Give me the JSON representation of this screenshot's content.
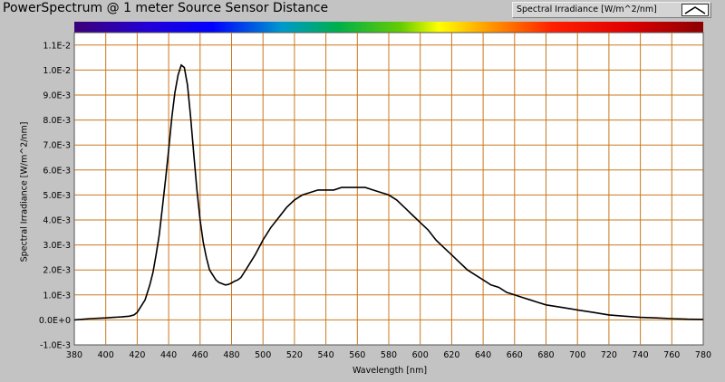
{
  "window": {
    "title": "PowerSpectrum @ 1 meter Source Sensor Distance"
  },
  "legend": {
    "label": "Spectral Irradiance [W/m^2/nm]"
  },
  "chart_data": {
    "type": "line",
    "title": "PowerSpectrum @ 1 meter Source Sensor Distance",
    "xlabel": "Wavelength [nm]",
    "ylabel": "Spectral Irradiance [W/m^2/nm]",
    "xlim": [
      380,
      780
    ],
    "ylim": [
      -0.001,
      0.0115
    ],
    "grid": true,
    "legend_position": "top-right",
    "plot_background": "#ffffff",
    "grid_color": "#c8781e",
    "line_color": "#000000",
    "x_ticks": [
      380,
      400,
      420,
      440,
      460,
      480,
      500,
      520,
      540,
      560,
      580,
      600,
      620,
      640,
      660,
      680,
      700,
      720,
      740,
      760,
      780
    ],
    "y_ticks": [
      -0.001,
      0,
      0.001,
      0.002,
      0.003,
      0.004,
      0.005,
      0.006,
      0.007,
      0.008,
      0.009,
      0.01,
      0.011
    ],
    "y_tick_labels": [
      "-1.0E-3",
      "0.0E+0",
      "1.0E-3",
      "2.0E-3",
      "3.0E-3",
      "4.0E-3",
      "5.0E-3",
      "6.0E-3",
      "7.0E-3",
      "8.0E-3",
      "9.0E-3",
      "1.0E-2",
      "1.1E-2"
    ],
    "series": [
      {
        "name": "Spectral Irradiance [W/m^2/nm]",
        "x": [
          380,
          390,
          400,
          405,
          410,
          415,
          418,
          420,
          422,
          425,
          428,
          430,
          432,
          434,
          436,
          438,
          440,
          442,
          444,
          446,
          448,
          450,
          452,
          454,
          456,
          458,
          460,
          462,
          464,
          466,
          468,
          470,
          472,
          474,
          476,
          478,
          480,
          482,
          484,
          486,
          488,
          490,
          495,
          500,
          505,
          510,
          515,
          520,
          525,
          530,
          535,
          540,
          545,
          550,
          555,
          560,
          565,
          570,
          575,
          580,
          585,
          590,
          595,
          600,
          605,
          610,
          615,
          620,
          625,
          630,
          635,
          640,
          645,
          650,
          655,
          660,
          665,
          670,
          675,
          680,
          690,
          700,
          710,
          720,
          730,
          740,
          750,
          760,
          770,
          780
        ],
        "y": [
          0.0,
          5e-05,
          8e-05,
          0.0001,
          0.00012,
          0.00015,
          0.0002,
          0.0003,
          0.0005,
          0.0008,
          0.0014,
          0.0019,
          0.0026,
          0.0034,
          0.0045,
          0.0056,
          0.0068,
          0.0081,
          0.0091,
          0.0098,
          0.0102,
          0.0101,
          0.0094,
          0.0081,
          0.0066,
          0.0052,
          0.004,
          0.0031,
          0.0025,
          0.002,
          0.0018,
          0.0016,
          0.0015,
          0.00145,
          0.0014,
          0.00142,
          0.00148,
          0.00155,
          0.0016,
          0.0017,
          0.0019,
          0.0021,
          0.0026,
          0.0032,
          0.0037,
          0.0041,
          0.0045,
          0.0048,
          0.005,
          0.0051,
          0.0052,
          0.0052,
          0.0052,
          0.0053,
          0.0053,
          0.0053,
          0.0053,
          0.0052,
          0.0051,
          0.005,
          0.0048,
          0.0045,
          0.0042,
          0.0039,
          0.0036,
          0.0032,
          0.0029,
          0.0026,
          0.0023,
          0.002,
          0.0018,
          0.0016,
          0.0014,
          0.0013,
          0.0011,
          0.001,
          0.0009,
          0.0008,
          0.0007,
          0.0006,
          0.0005,
          0.0004,
          0.0003,
          0.0002,
          0.00015,
          0.0001,
          8e-05,
          5e-05,
          3e-05,
          2e-05
        ]
      }
    ]
  }
}
